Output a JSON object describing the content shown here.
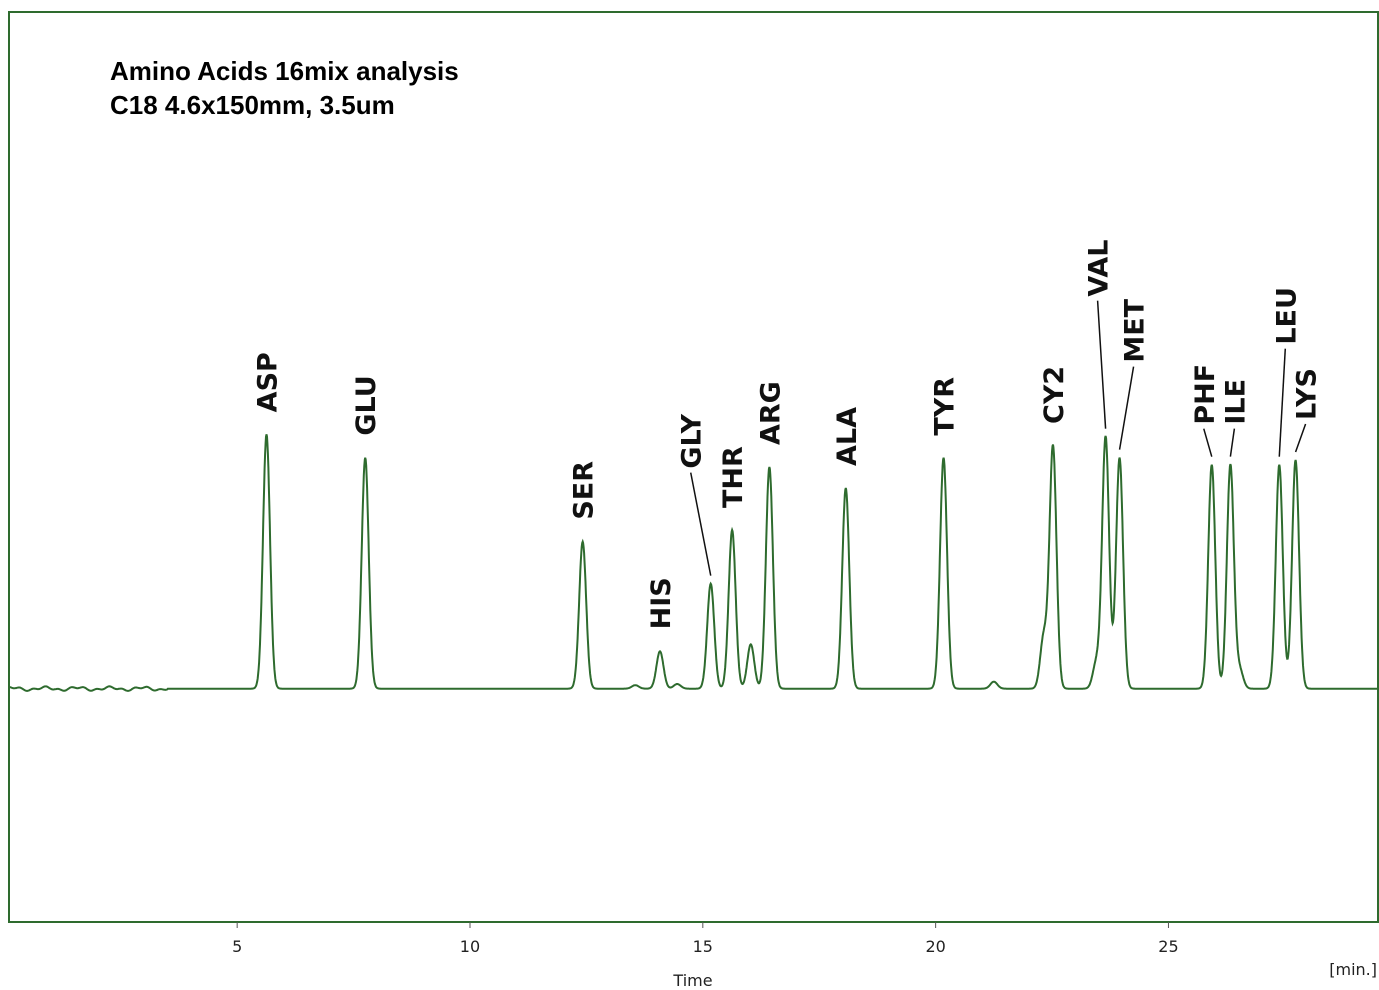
{
  "chart_data": {
    "type": "line",
    "title": [
      "Amino Acids 16mix analysis",
      "C18  4.6x150mm, 3.5um"
    ],
    "xlabel": "Time",
    "xunit": "[min.]",
    "xlim": [
      0.1,
      29.5
    ],
    "ylim": [
      -100,
      290
    ],
    "xticks": [
      5,
      10,
      15,
      20,
      25
    ],
    "grid": false,
    "legend": "none",
    "line_color": "#2e6b2e",
    "frame_color": "#2e6b2e",
    "baseline": 0,
    "peaks": [
      {
        "name": "ASP",
        "rt": 5.63,
        "height": 109
      },
      {
        "name": "GLU",
        "rt": 7.75,
        "height": 99
      },
      {
        "name": "SER",
        "rt": 12.42,
        "height": 63
      },
      {
        "name": "HIS",
        "rt": 14.08,
        "height": 16
      },
      {
        "name": "GLY",
        "rt": 15.17,
        "height": 45
      },
      {
        "name": "THR",
        "rt": 15.63,
        "height": 68
      },
      {
        "name": "ARG",
        "rt": 16.43,
        "height": 95
      },
      {
        "name": "ALA",
        "rt": 18.07,
        "height": 86
      },
      {
        "name": "TYR",
        "rt": 20.17,
        "height": 99
      },
      {
        "name": "CY2",
        "rt": 22.52,
        "height": 104
      },
      {
        "name": "VAL",
        "rt": 23.65,
        "height": 108
      },
      {
        "name": "MET",
        "rt": 23.95,
        "height": 99
      },
      {
        "name": "PHF",
        "rt": 25.93,
        "height": 96
      },
      {
        "name": "ILE",
        "rt": 26.33,
        "height": 96
      },
      {
        "name": "LEU",
        "rt": 27.38,
        "height": 96
      },
      {
        "name": "LYS",
        "rt": 27.73,
        "height": 98
      }
    ],
    "minor_peaks": [
      {
        "rt": 16.03,
        "height": 19
      },
      {
        "rt": 22.32,
        "height": 22
      },
      {
        "rt": 23.45,
        "height": 11
      },
      {
        "rt": 26.53,
        "height": 8
      },
      {
        "rt": 21.25,
        "height": 3
      },
      {
        "rt": 14.45,
        "height": 2
      },
      {
        "rt": 13.55,
        "height": 1.5
      }
    ]
  }
}
